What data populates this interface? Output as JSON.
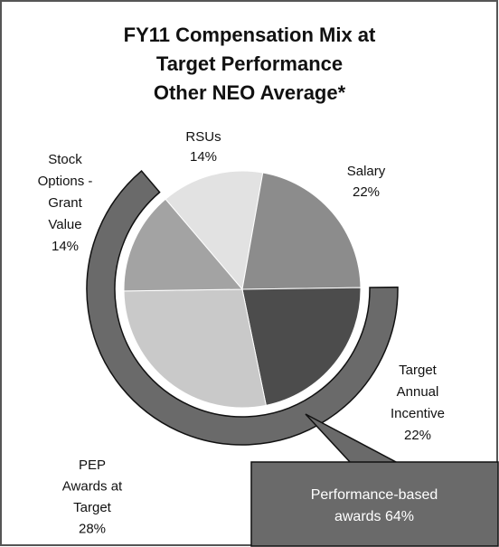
{
  "chart_data": {
    "type": "pie",
    "title": [
      "FY11 Compensation Mix at",
      "Target Performance",
      "Other NEO Average*"
    ],
    "categories": [
      [
        "RSUs"
      ],
      [
        "Salary"
      ],
      [
        "Target",
        "Annual",
        "Incentive"
      ],
      [
        "PEP",
        "Awards at",
        "Target"
      ],
      [
        "Stock",
        "Options -",
        "Grant",
        "Value"
      ]
    ],
    "values": [
      14,
      22,
      22,
      28,
      14
    ],
    "value_labels": [
      "14%",
      "22%",
      "22%",
      "28%",
      "14%"
    ],
    "colors": [
      "#e2e2e2",
      "#8c8c8c",
      "#4c4c4c",
      "#c9c9c9",
      "#a3a3a3"
    ],
    "callout": {
      "lines": [
        "Performance-based",
        "awards 64%"
      ],
      "value": 64,
      "color": "#6a6a6a"
    }
  }
}
